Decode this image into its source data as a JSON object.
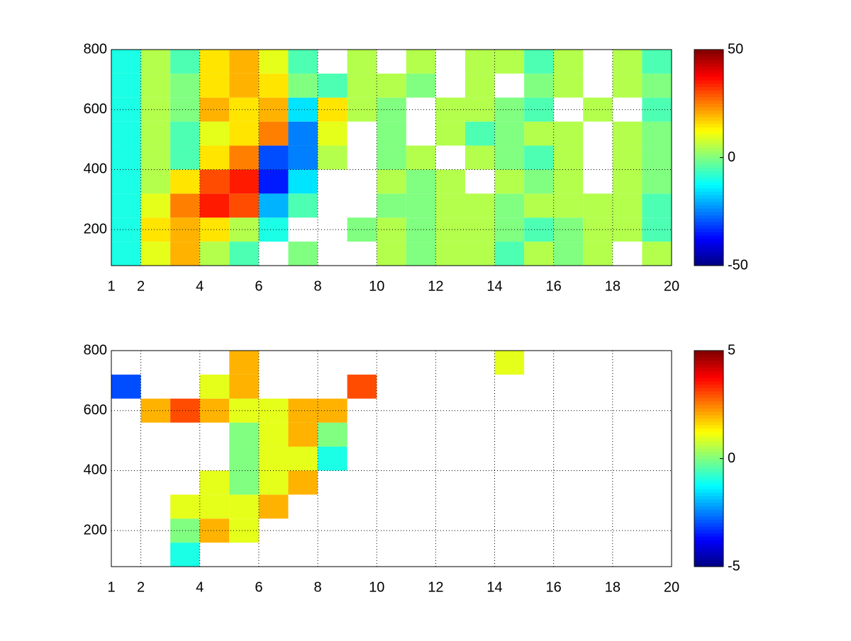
{
  "chart_data": [
    {
      "type": "heatmap",
      "x_edges": [
        1,
        2,
        3,
        4,
        5,
        6,
        7,
        8,
        9,
        10,
        11,
        12,
        13,
        14,
        15,
        16,
        17,
        18,
        19,
        20
      ],
      "y_edges": [
        80,
        160,
        240,
        320,
        400,
        480,
        560,
        640,
        720,
        800
      ],
      "z": [
        [
          -10,
          10,
          20,
          5,
          -5,
          null,
          0,
          null,
          null,
          5,
          0,
          5,
          5,
          -5,
          5,
          0,
          5,
          null,
          5
        ],
        [
          -10,
          15,
          20,
          15,
          5,
          -10,
          null,
          null,
          0,
          5,
          0,
          5,
          5,
          0,
          -5,
          0,
          5,
          5,
          -5
        ],
        [
          -10,
          10,
          25,
          35,
          30,
          -20,
          -5,
          null,
          null,
          0,
          0,
          5,
          5,
          0,
          5,
          5,
          5,
          5,
          -5
        ],
        [
          -10,
          5,
          15,
          30,
          35,
          -35,
          -15,
          null,
          null,
          5,
          0,
          5,
          null,
          5,
          0,
          5,
          null,
          5,
          0
        ],
        [
          -10,
          5,
          -5,
          15,
          25,
          -30,
          -25,
          5,
          null,
          0,
          5,
          null,
          5,
          0,
          -5,
          5,
          null,
          5,
          0
        ],
        [
          -10,
          5,
          -5,
          10,
          15,
          25,
          -25,
          10,
          null,
          0,
          null,
          5,
          -5,
          0,
          5,
          5,
          null,
          5,
          0
        ],
        [
          -10,
          5,
          0,
          20,
          15,
          20,
          -15,
          15,
          5,
          0,
          null,
          5,
          5,
          0,
          -5,
          null,
          5,
          null,
          -5
        ],
        [
          -10,
          5,
          0,
          15,
          20,
          15,
          0,
          -5,
          5,
          5,
          0,
          null,
          5,
          null,
          0,
          5,
          null,
          5,
          0
        ],
        [
          -10,
          5,
          -5,
          15,
          20,
          10,
          -5,
          null,
          5,
          null,
          5,
          null,
          5,
          5,
          -5,
          5,
          null,
          5,
          -5
        ]
      ],
      "xlim": [
        1,
        20
      ],
      "xticks": [
        1,
        2,
        4,
        6,
        8,
        10,
        12,
        14,
        16,
        18,
        20
      ],
      "ylim": [
        80,
        800
      ],
      "yticks": [
        200,
        400,
        600,
        800
      ],
      "clim": [
        -50,
        50
      ],
      "colorbar_ticks": [
        -50,
        0,
        50
      ],
      "colormap": "jet",
      "grid": true
    },
    {
      "type": "heatmap",
      "x_edges": [
        1,
        2,
        3,
        4,
        5,
        6,
        7,
        8,
        9,
        10,
        11,
        12,
        13,
        14,
        15,
        16,
        17,
        18,
        19,
        20
      ],
      "y_edges": [
        80,
        160,
        240,
        320,
        400,
        480,
        560,
        640,
        720,
        800
      ],
      "z": [
        [
          null,
          null,
          -1,
          null,
          null,
          null,
          null,
          null,
          null,
          null,
          null,
          null,
          null,
          null,
          null,
          null,
          null,
          null,
          null
        ],
        [
          null,
          null,
          0,
          2,
          1,
          null,
          null,
          null,
          null,
          null,
          null,
          null,
          null,
          null,
          null,
          null,
          null,
          null,
          null
        ],
        [
          null,
          null,
          1,
          1,
          1,
          2,
          null,
          null,
          null,
          null,
          null,
          null,
          null,
          null,
          null,
          null,
          null,
          null,
          null
        ],
        [
          null,
          null,
          null,
          1,
          0,
          1,
          2,
          null,
          null,
          null,
          null,
          null,
          null,
          null,
          null,
          null,
          null,
          null,
          null
        ],
        [
          null,
          null,
          null,
          null,
          0,
          1,
          1,
          -1,
          null,
          null,
          null,
          null,
          null,
          null,
          null,
          null,
          null,
          null,
          null
        ],
        [
          null,
          null,
          null,
          null,
          0,
          1,
          2,
          0,
          null,
          null,
          null,
          null,
          null,
          null,
          null,
          null,
          null,
          null,
          null
        ],
        [
          null,
          2,
          3,
          2,
          1,
          1,
          2,
          2,
          null,
          null,
          null,
          null,
          null,
          null,
          null,
          null,
          null,
          null,
          null
        ],
        [
          -3,
          null,
          null,
          1,
          2,
          null,
          null,
          null,
          3,
          null,
          null,
          null,
          null,
          null,
          null,
          null,
          null,
          null,
          null
        ],
        [
          null,
          null,
          null,
          null,
          2,
          null,
          null,
          null,
          null,
          null,
          null,
          null,
          null,
          1,
          null,
          null,
          null,
          null,
          null
        ]
      ],
      "xlim": [
        1,
        20
      ],
      "xticks": [
        1,
        2,
        4,
        6,
        8,
        10,
        12,
        14,
        16,
        18,
        20
      ],
      "ylim": [
        80,
        800
      ],
      "yticks": [
        200,
        400,
        600,
        800
      ],
      "clim": [
        -5,
        5
      ],
      "colorbar_ticks": [
        -5,
        0,
        5
      ],
      "colormap": "jet",
      "grid": true
    }
  ]
}
